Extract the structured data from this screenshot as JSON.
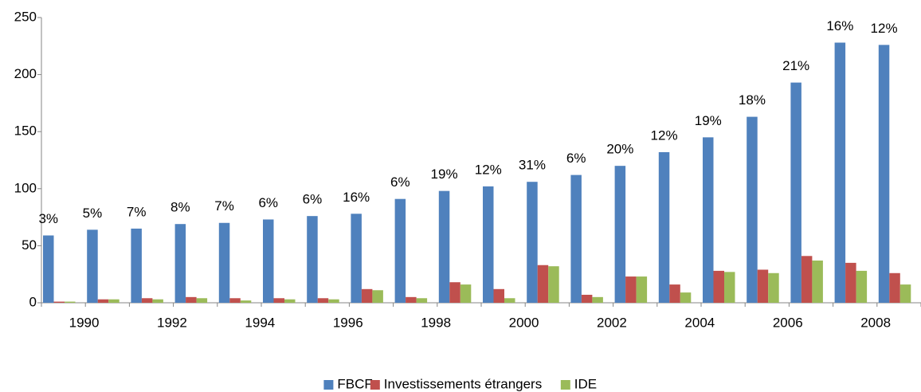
{
  "chart_data": {
    "type": "bar",
    "categories": [
      "1990",
      null,
      "1992",
      null,
      "1994",
      null,
      "1996",
      null,
      "1998",
      null,
      "2000",
      null,
      "2002",
      null,
      "2004",
      null,
      "2006",
      null,
      "2008",
      null
    ],
    "series": [
      {
        "name": "FBCF",
        "color": "#4f81bd",
        "values": [
          59,
          64,
          65,
          69,
          70,
          73,
          76,
          78,
          91,
          98,
          102,
          106,
          112,
          120,
          132,
          145,
          163,
          193,
          228,
          226
        ],
        "value_labels": [
          "3%",
          "5%",
          "7%",
          "8%",
          "7%",
          "6%",
          "6%",
          "16%",
          "6%",
          "19%",
          "12%",
          "31%",
          "6%",
          "20%",
          "12%",
          "19%",
          "18%",
          "21%",
          "16%",
          "12%"
        ]
      },
      {
        "name": "Investissements étrangers",
        "color": "#c0504d",
        "values": [
          1,
          3,
          4,
          5,
          4,
          4,
          4,
          12,
          5,
          18,
          12,
          33,
          7,
          23,
          16,
          28,
          29,
          41,
          35,
          26
        ]
      },
      {
        "name": "IDE",
        "color": "#9bbb59",
        "values": [
          1,
          3,
          3,
          4,
          2,
          3,
          3,
          11,
          4,
          16,
          4,
          32,
          5,
          23,
          9,
          27,
          26,
          37,
          28,
          16
        ]
      }
    ],
    "ylim": [
      0,
      250
    ],
    "yticks": [
      0,
      50,
      100,
      150,
      200,
      250
    ],
    "legend": "bottom"
  }
}
